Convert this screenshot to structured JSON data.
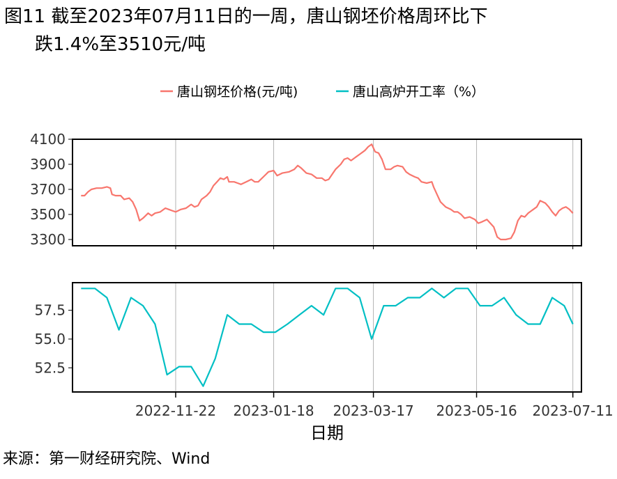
{
  "title": {
    "line1": "图11 截至2023年07月11日的一周，唐山钢坯价格周环比下",
    "line2": "跌1.4%至3510元/吨"
  },
  "source": "来源：第一财经研究院、Wind",
  "colors": {
    "price": "#F8766D",
    "rate": "#00BFC4",
    "grid": "#b3b3b3"
  },
  "chart_data": [
    {
      "type": "line",
      "xlabel": "日期",
      "series": [
        {
          "name": "唐山钢坯价格(元/吨)",
          "color": "#F8766D",
          "points": [
            [
              "2022-09-28",
              3650
            ],
            [
              "2022-09-30",
              3650
            ],
            [
              "2022-10-02",
              3680
            ],
            [
              "2022-10-04",
              3700
            ],
            [
              "2022-10-07",
              3710
            ],
            [
              "2022-10-10",
              3710
            ],
            [
              "2022-10-13",
              3720
            ],
            [
              "2022-10-15",
              3710
            ],
            [
              "2022-10-16",
              3660
            ],
            [
              "2022-10-18",
              3650
            ],
            [
              "2022-10-21",
              3650
            ],
            [
              "2022-10-23",
              3620
            ],
            [
              "2022-10-26",
              3630
            ],
            [
              "2022-10-28",
              3600
            ],
            [
              "2022-10-30",
              3540
            ],
            [
              "2022-11-01",
              3450
            ],
            [
              "2022-11-03",
              3470
            ],
            [
              "2022-11-06",
              3510
            ],
            [
              "2022-11-08",
              3490
            ],
            [
              "2022-11-10",
              3510
            ],
            [
              "2022-11-13",
              3520
            ],
            [
              "2022-11-16",
              3550
            ],
            [
              "2022-11-18",
              3540
            ],
            [
              "2022-11-20",
              3530
            ],
            [
              "2022-11-22",
              3520
            ],
            [
              "2022-11-25",
              3540
            ],
            [
              "2022-11-28",
              3550
            ],
            [
              "2022-12-01",
              3580
            ],
            [
              "2022-12-03",
              3560
            ],
            [
              "2022-12-05",
              3570
            ],
            [
              "2022-12-07",
              3620
            ],
            [
              "2022-12-10",
              3650
            ],
            [
              "2022-12-12",
              3680
            ],
            [
              "2022-12-14",
              3730
            ],
            [
              "2022-12-16",
              3760
            ],
            [
              "2022-12-18",
              3790
            ],
            [
              "2022-12-20",
              3780
            ],
            [
              "2022-12-22",
              3800
            ],
            [
              "2022-12-23",
              3760
            ],
            [
              "2022-12-26",
              3760
            ],
            [
              "2022-12-28",
              3750
            ],
            [
              "2022-12-30",
              3740
            ],
            [
              "2023-01-02",
              3760
            ],
            [
              "2023-01-05",
              3780
            ],
            [
              "2023-01-07",
              3760
            ],
            [
              "2023-01-09",
              3760
            ],
            [
              "2023-01-12",
              3800
            ],
            [
              "2023-01-15",
              3840
            ],
            [
              "2023-01-18",
              3850
            ],
            [
              "2023-01-20",
              3810
            ],
            [
              "2023-01-23",
              3830
            ],
            [
              "2023-01-27",
              3840
            ],
            [
              "2023-01-30",
              3860
            ],
            [
              "2023-02-01",
              3890
            ],
            [
              "2023-02-03",
              3870
            ],
            [
              "2023-02-06",
              3830
            ],
            [
              "2023-02-09",
              3820
            ],
            [
              "2023-02-12",
              3790
            ],
            [
              "2023-02-15",
              3790
            ],
            [
              "2023-02-17",
              3770
            ],
            [
              "2023-02-19",
              3780
            ],
            [
              "2023-02-21",
              3820
            ],
            [
              "2023-02-23",
              3860
            ],
            [
              "2023-02-26",
              3900
            ],
            [
              "2023-02-28",
              3940
            ],
            [
              "2023-03-02",
              3950
            ],
            [
              "2023-03-04",
              3930
            ],
            [
              "2023-03-07",
              3960
            ],
            [
              "2023-03-09",
              3980
            ],
            [
              "2023-03-12",
              4010
            ],
            [
              "2023-03-14",
              4040
            ],
            [
              "2023-03-16",
              4060
            ],
            [
              "2023-03-17",
              4030
            ],
            [
              "2023-03-18",
              4000
            ],
            [
              "2023-03-20",
              3990
            ],
            [
              "2023-03-22",
              3940
            ],
            [
              "2023-03-24",
              3860
            ],
            [
              "2023-03-27",
              3860
            ],
            [
              "2023-03-29",
              3880
            ],
            [
              "2023-03-31",
              3890
            ],
            [
              "2023-04-03",
              3880
            ],
            [
              "2023-04-05",
              3840
            ],
            [
              "2023-04-07",
              3820
            ],
            [
              "2023-04-10",
              3800
            ],
            [
              "2023-04-12",
              3790
            ],
            [
              "2023-04-14",
              3760
            ],
            [
              "2023-04-17",
              3750
            ],
            [
              "2023-04-20",
              3760
            ],
            [
              "2023-04-21",
              3720
            ],
            [
              "2023-04-23",
              3660
            ],
            [
              "2023-04-25",
              3600
            ],
            [
              "2023-04-28",
              3560
            ],
            [
              "2023-05-01",
              3540
            ],
            [
              "2023-05-03",
              3520
            ],
            [
              "2023-05-05",
              3520
            ],
            [
              "2023-05-07",
              3500
            ],
            [
              "2023-05-09",
              3470
            ],
            [
              "2023-05-12",
              3480
            ],
            [
              "2023-05-15",
              3460
            ],
            [
              "2023-05-17",
              3430
            ],
            [
              "2023-05-19",
              3440
            ],
            [
              "2023-05-22",
              3460
            ],
            [
              "2023-05-24",
              3430
            ],
            [
              "2023-05-26",
              3400
            ],
            [
              "2023-05-28",
              3320
            ],
            [
              "2023-05-30",
              3300
            ],
            [
              "2023-06-02",
              3300
            ],
            [
              "2023-06-05",
              3310
            ],
            [
              "2023-06-07",
              3360
            ],
            [
              "2023-06-09",
              3450
            ],
            [
              "2023-06-11",
              3490
            ],
            [
              "2023-06-13",
              3480
            ],
            [
              "2023-06-15",
              3510
            ],
            [
              "2023-06-18",
              3540
            ],
            [
              "2023-06-20",
              3560
            ],
            [
              "2023-06-22",
              3610
            ],
            [
              "2023-06-25",
              3590
            ],
            [
              "2023-06-27",
              3560
            ],
            [
              "2023-06-29",
              3520
            ],
            [
              "2023-07-01",
              3490
            ],
            [
              "2023-07-03",
              3530
            ],
            [
              "2023-07-05",
              3550
            ],
            [
              "2023-07-07",
              3560
            ],
            [
              "2023-07-09",
              3540
            ],
            [
              "2023-07-11",
              3510
            ]
          ]
        },
        {
          "name": "唐山高炉开工率（%）",
          "color": "#00BFC4",
          "points": [
            [
              "2022-09-28",
              59.4
            ],
            [
              "2022-10-06",
              59.4
            ],
            [
              "2022-10-13",
              58.6
            ],
            [
              "2022-10-20",
              55.8
            ],
            [
              "2022-10-27",
              58.6
            ],
            [
              "2022-11-03",
              57.9
            ],
            [
              "2022-11-10",
              56.3
            ],
            [
              "2022-11-17",
              51.9
            ],
            [
              "2022-11-24",
              52.6
            ],
            [
              "2022-12-01",
              52.6
            ],
            [
              "2022-12-08",
              50.9
            ],
            [
              "2022-12-15",
              53.3
            ],
            [
              "2022-12-22",
              57.1
            ],
            [
              "2022-12-29",
              56.3
            ],
            [
              "2023-01-05",
              56.3
            ],
            [
              "2023-01-12",
              55.6
            ],
            [
              "2023-01-19",
              55.6
            ],
            [
              "2023-01-26",
              56.3
            ],
            [
              "2023-02-02",
              57.1
            ],
            [
              "2023-02-09",
              57.9
            ],
            [
              "2023-02-16",
              57.1
            ],
            [
              "2023-02-23",
              59.4
            ],
            [
              "2023-03-02",
              59.4
            ],
            [
              "2023-03-09",
              58.6
            ],
            [
              "2023-03-16",
              55.0
            ],
            [
              "2023-03-23",
              57.9
            ],
            [
              "2023-03-30",
              57.9
            ],
            [
              "2023-04-06",
              58.6
            ],
            [
              "2023-04-13",
              58.6
            ],
            [
              "2023-04-20",
              59.4
            ],
            [
              "2023-04-27",
              58.6
            ],
            [
              "2023-05-04",
              59.4
            ],
            [
              "2023-05-11",
              59.4
            ],
            [
              "2023-05-18",
              57.9
            ],
            [
              "2023-05-25",
              57.9
            ],
            [
              "2023-06-01",
              58.6
            ],
            [
              "2023-06-08",
              57.1
            ],
            [
              "2023-06-15",
              56.3
            ],
            [
              "2023-06-22",
              56.3
            ],
            [
              "2023-06-29",
              58.6
            ],
            [
              "2023-07-06",
              57.9
            ],
            [
              "2023-07-11",
              56.3
            ]
          ]
        }
      ],
      "panels": [
        {
          "series": 0,
          "ylim": [
            3250,
            4100
          ],
          "yticks": [
            3300,
            3500,
            3700,
            3900,
            4100
          ]
        },
        {
          "series": 1,
          "ylim": [
            50.4,
            59.9
          ],
          "yticks": [
            52.5,
            55.0,
            57.5
          ]
        }
      ],
      "xlim": [
        "2022-09-23",
        "2023-07-16"
      ],
      "xticks": [
        "2022-11-22",
        "2023-01-18",
        "2023-03-17",
        "2023-05-16",
        "2023-07-11"
      ],
      "legend": "top"
    }
  ]
}
